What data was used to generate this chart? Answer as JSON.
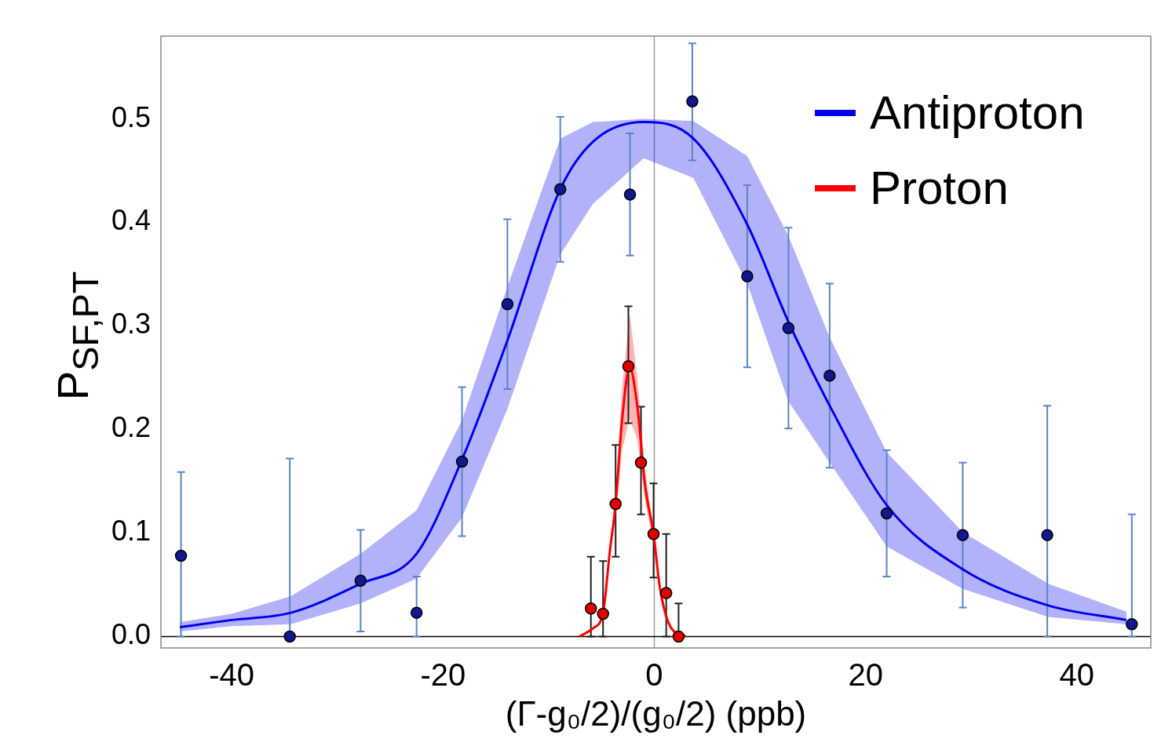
{
  "chart_data": {
    "type": "scatter",
    "xlabel": "(Γ-g₀/2)/(g₀/2) (ppb)",
    "ylabel": "P$_{SF,PT}$",
    "xlim": [
      -46.7,
      47.0
    ],
    "ylim": [
      -0.011,
      0.58
    ],
    "xticks": [
      -40,
      -20,
      0,
      20,
      40
    ],
    "yticks": [
      {
        "value": 0,
        "label": "0.0"
      },
      {
        "value": 0.1,
        "label": "0.1"
      },
      {
        "value": 0.2,
        "label": "0.2"
      },
      {
        "value": 0.3,
        "label": "0.3"
      },
      {
        "value": 0.4,
        "label": "0.4"
      },
      {
        "value": 0.5,
        "label": "0.5"
      }
    ],
    "grid": false,
    "legend": "top right",
    "marker": "circle",
    "ref_lines": [
      {
        "axis": "x",
        "value": 0,
        "color": "#a0a0a0"
      },
      {
        "axis": "y",
        "value": 0,
        "color": "#000000"
      }
    ],
    "series": [
      {
        "type": "line",
        "name": "Antiproton",
        "color": "#0000ee",
        "marker": "none",
        "x": [
          -44.9,
          -40,
          -34.4,
          -27.8,
          -22.5,
          -18.2,
          -13.9,
          -8.9,
          -5.8,
          -1,
          3.7,
          8.8,
          12.7,
          16.6,
          22,
          29.2,
          37.3,
          44.7
        ],
        "values": [
          0.009,
          0.016,
          0.023,
          0.051,
          0.08,
          0.171,
          0.286,
          0.432,
          0.478,
          0.497,
          0.481,
          0.398,
          0.304,
          0.223,
          0.127,
          0.065,
          0.03,
          0.016
        ],
        "lower": [
          0.005,
          0.01,
          0.012,
          0.032,
          0.056,
          0.115,
          0.22,
          0.369,
          0.418,
          0.462,
          0.443,
          0.341,
          0.227,
          0.168,
          0.087,
          0.046,
          0.019,
          0.012
        ],
        "upper": [
          0.014,
          0.022,
          0.039,
          0.08,
          0.122,
          0.209,
          0.338,
          0.481,
          0.497,
          0.5,
          0.498,
          0.464,
          0.387,
          0.289,
          0.178,
          0.101,
          0.051,
          0.024
        ]
      },
      {
        "type": "line",
        "name": "Proton",
        "color": "#ff0000",
        "marker": "none",
        "x": [
          -7.1,
          -5.8,
          -4.85,
          -4.2,
          -3.66,
          -3.05,
          -2.33,
          -1.6,
          -0.87,
          -0.07,
          0.55,
          1.5,
          3.0
        ],
        "values": [
          0,
          0.008,
          0.023,
          0.083,
          0.128,
          0.209,
          0.26,
          0.222,
          0.146,
          0.099,
          0.046,
          0.01,
          0
        ],
        "lower": [
          0,
          0.008,
          0.023,
          0.08,
          0.115,
          0.18,
          0.211,
          0.19,
          0.13,
          0.09,
          0.044,
          0.01,
          0
        ],
        "upper": [
          0,
          0.008,
          0.023,
          0.088,
          0.14,
          0.24,
          0.312,
          0.25,
          0.16,
          0.105,
          0.048,
          0.01,
          0
        ]
      },
      {
        "color": "#101890",
        "x": [
          -44.8,
          -34.5,
          -27.8,
          -22.5,
          -18.2,
          -13.9,
          -8.9,
          -2.3,
          3.6,
          8.8,
          12.7,
          16.6,
          22.0,
          29.2,
          37.2,
          45.2
        ],
        "values": [
          0.078,
          0,
          0.054,
          0.023,
          0.169,
          0.321,
          0.432,
          0.427,
          0.517,
          0.348,
          0.298,
          0.252,
          0.119,
          0.098,
          0.098,
          0.012
        ],
        "errors": [
          [
            0,
            0.159
          ],
          [
            0,
            0.172
          ],
          [
            0.005,
            0.103
          ],
          [
            0,
            0.058
          ],
          [
            0.097,
            0.241
          ],
          [
            0.239,
            0.403
          ],
          [
            0.362,
            0.502
          ],
          [
            0.368,
            0.486
          ],
          [
            0.46,
            0.573
          ],
          [
            0.26,
            0.436
          ],
          [
            0.201,
            0.395
          ],
          [
            0.163,
            0.341
          ],
          [
            0.058,
            0.18
          ],
          [
            0.028,
            0.168
          ],
          [
            0,
            0.223
          ],
          [
            0,
            0.118
          ]
        ]
      },
      {
        "color": "#e00000",
        "x": [
          -6.0,
          -4.85,
          -3.66,
          -2.45,
          -1.26,
          -0.07,
          1.13,
          2.3
        ],
        "values": [
          0.027,
          0.022,
          0.128,
          0.261,
          0.168,
          0.099,
          0.042,
          0
        ],
        "errors": [
          [
            0,
            0.077
          ],
          [
            0,
            0.073
          ],
          [
            0.077,
            0.185
          ],
          [
            0.206,
            0.319
          ],
          [
            0.118,
            0.222
          ],
          [
            0.057,
            0.148
          ],
          [
            0,
            0.099
          ],
          [
            0,
            0.032
          ]
        ]
      }
    ]
  }
}
